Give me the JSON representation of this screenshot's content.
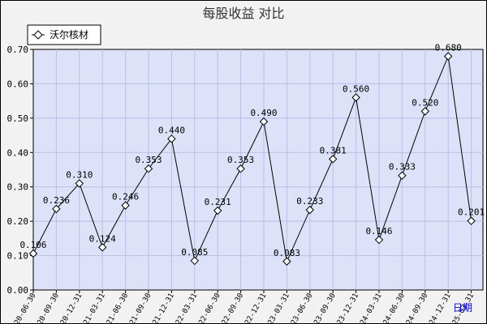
{
  "chart_data": {
    "type": "line",
    "title": "每股收益  对比",
    "xlabel": "日期",
    "ylabel": "",
    "ylim": [
      0,
      0.7
    ],
    "yticks": [
      "0.00",
      "0.10",
      "0.20",
      "0.30",
      "0.40",
      "0.50",
      "0.60",
      "0.70"
    ],
    "grid": true,
    "legend": "top-left",
    "x": [
      "2020-06-30",
      "2020-09-30",
      "2020-12-31",
      "2021-03-31",
      "2021-06-30",
      "2021-09-30",
      "2021-12-31",
      "2022-03-31",
      "2022-06-30",
      "2022-09-30",
      "2022-12-31",
      "2023-03-31",
      "2023-06-30",
      "2023-09-30",
      "2023-12-31",
      "2024-03-31",
      "2024-06-30",
      "2024-09-30",
      "2024-12-31",
      "2025-03-31"
    ],
    "series": [
      {
        "name": "沃尔核材",
        "values": [
          0.106,
          0.236,
          0.31,
          0.124,
          0.246,
          0.353,
          0.44,
          0.085,
          0.231,
          0.353,
          0.49,
          0.083,
          0.233,
          0.381,
          0.56,
          0.146,
          0.333,
          0.52,
          0.68,
          0.201
        ],
        "labels": [
          "0.106",
          "0.236",
          "0.310",
          "0.124",
          "0.246",
          "0.353",
          "0.440",
          "0.085",
          "0.231",
          "0.353",
          "0.490",
          "0.083",
          "0.233",
          "0.381",
          "0.560",
          "0.146",
          "0.333",
          "0.520",
          "0.680",
          "0.201"
        ]
      }
    ],
    "colors": {
      "plot_bg": "#dde2f8",
      "grid": "#b8bfe6",
      "line": "#000000",
      "frame_bg": "#f2f2f2",
      "xlabel": "#0000cc"
    }
  }
}
